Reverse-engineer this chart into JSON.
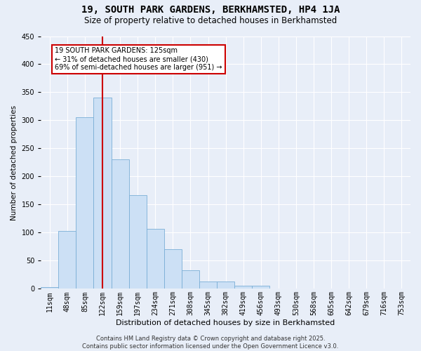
{
  "title": "19, SOUTH PARK GARDENS, BERKHAMSTED, HP4 1JA",
  "subtitle": "Size of property relative to detached houses in Berkhamsted",
  "xlabel": "Distribution of detached houses by size in Berkhamsted",
  "ylabel": "Number of detached properties",
  "categories": [
    "11sqm",
    "48sqm",
    "85sqm",
    "122sqm",
    "159sqm",
    "197sqm",
    "234sqm",
    "271sqm",
    "308sqm",
    "345sqm",
    "382sqm",
    "419sqm",
    "456sqm",
    "493sqm",
    "530sqm",
    "568sqm",
    "605sqm",
    "642sqm",
    "679sqm",
    "716sqm",
    "753sqm"
  ],
  "values": [
    3,
    103,
    305,
    341,
    230,
    167,
    107,
    70,
    33,
    13,
    13,
    5,
    5,
    1,
    1,
    1,
    0,
    0,
    0,
    0,
    0
  ],
  "bar_color": "#cce0f5",
  "bar_edge_color": "#7aaed6",
  "vline_x_idx": 3,
  "vline_color": "#cc0000",
  "annotation_text": "19 SOUTH PARK GARDENS: 125sqm\n← 31% of detached houses are smaller (430)\n69% of semi-detached houses are larger (951) →",
  "annotation_box_facecolor": "white",
  "annotation_box_edgecolor": "#cc0000",
  "footer_text": "Contains HM Land Registry data © Crown copyright and database right 2025.\nContains public sector information licensed under the Open Government Licence v3.0.",
  "bg_color": "#e8eef8",
  "ylim": [
    0,
    450
  ],
  "yticks": [
    0,
    50,
    100,
    150,
    200,
    250,
    300,
    350,
    400,
    450
  ],
  "title_fontsize": 10,
  "subtitle_fontsize": 8.5,
  "ylabel_fontsize": 7.5,
  "xlabel_fontsize": 8,
  "tick_fontsize": 7,
  "footer_fontsize": 6,
  "annot_fontsize": 7
}
